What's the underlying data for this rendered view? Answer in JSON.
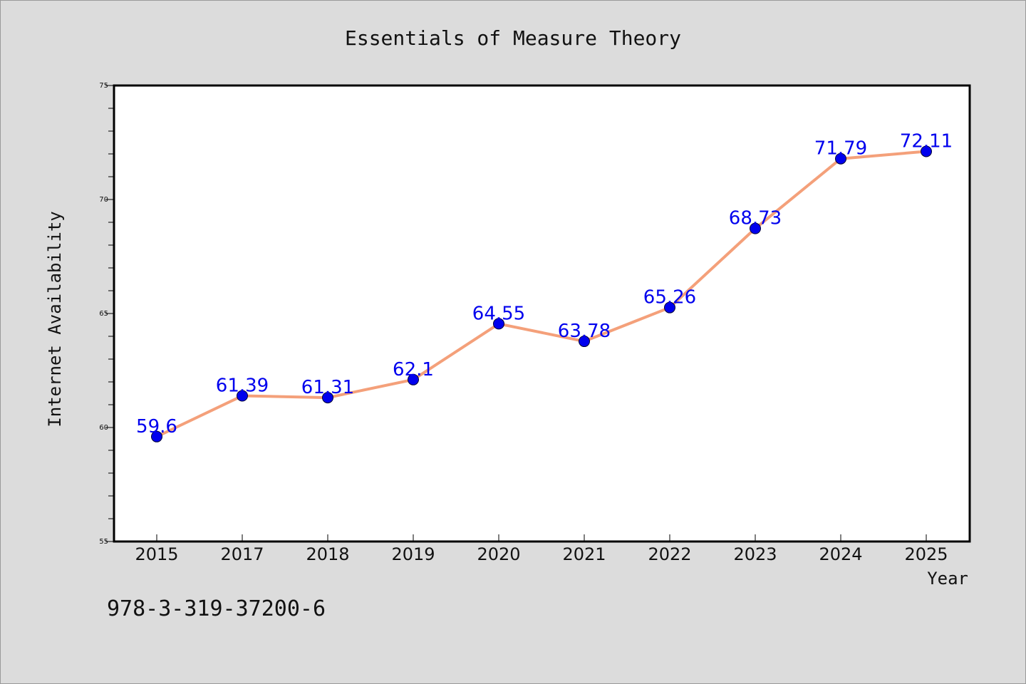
{
  "chart_data": {
    "type": "line",
    "title": "Essentials of Measure Theory",
    "xlabel": "Year",
    "ylabel": "Internet Availability",
    "categories": [
      "2015",
      "2017",
      "2018",
      "2019",
      "2020",
      "2021",
      "2022",
      "2023",
      "2024",
      "2025"
    ],
    "series": [
      {
        "values": [
          59.6,
          61.39,
          61.31,
          62.1,
          64.55,
          63.78,
          65.26,
          68.73,
          71.79,
          72.11
        ],
        "labels": [
          "59.6",
          "61.39",
          "61.31",
          "62.1",
          "64.55",
          "63.78",
          "65.26",
          "68.73",
          "71.79",
          "72.11"
        ],
        "line_color": "#f4a07a",
        "marker_color": "#0000ee"
      }
    ],
    "ylim": [
      55,
      75
    ],
    "yticks": [
      "55",
      "60",
      "65",
      "70",
      "75"
    ],
    "grid": false,
    "label_color": "#0000ee"
  },
  "footer": {
    "isbn": "978-3-319-37200-6"
  }
}
